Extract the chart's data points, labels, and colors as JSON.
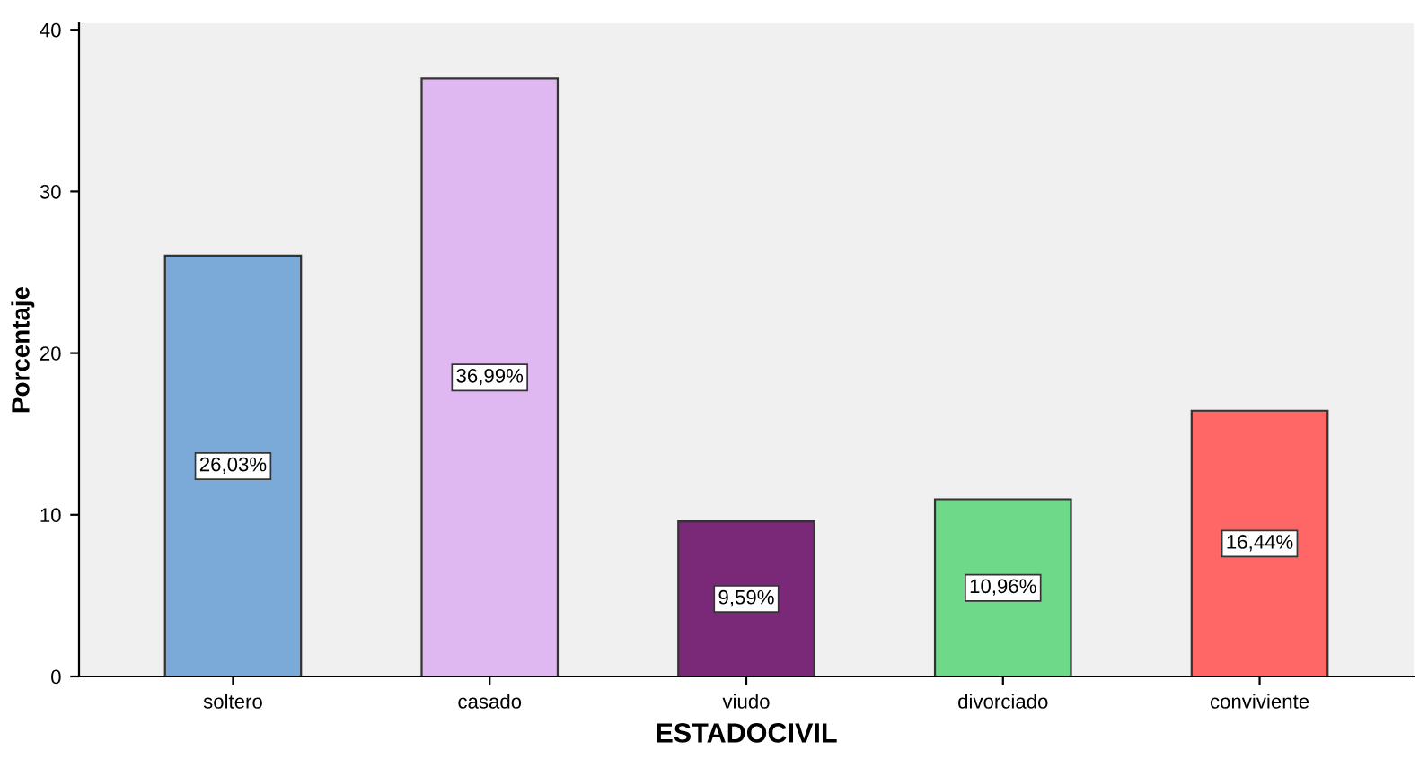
{
  "chart_data": {
    "type": "bar",
    "categories": [
      "soltero",
      "casado",
      "viudo",
      "divorciado",
      "conviviente"
    ],
    "values": [
      26.03,
      36.99,
      9.59,
      10.96,
      16.44
    ],
    "value_labels": [
      "26,03%",
      "36,99%",
      "9,59%",
      "10,96%",
      "16,44%"
    ],
    "colors": [
      "#7ba9d8",
      "#dfb8f2",
      "#7a2878",
      "#6fd98a",
      "#ff6666"
    ],
    "xlabel": "ESTADOCIVIL",
    "ylabel": "Porcentaje",
    "ylim": [
      0,
      40.4
    ],
    "yticks": [
      0,
      10,
      20,
      30,
      40
    ],
    "grid": false,
    "legend": false
  }
}
